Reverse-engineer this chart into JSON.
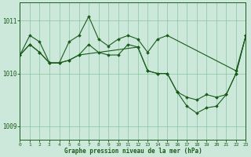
{
  "title": "Graphe pression niveau de la mer (hPa)",
  "bg": "#cce8da",
  "grid_color": "#88c4a0",
  "lc": "#1a5c1a",
  "xlim": [
    0,
    23
  ],
  "ylim": [
    1008.75,
    1011.35
  ],
  "yticks": [
    1009,
    1010,
    1011
  ],
  "xticks": [
    0,
    1,
    2,
    3,
    4,
    5,
    6,
    7,
    8,
    9,
    10,
    11,
    12,
    13,
    14,
    15,
    16,
    17,
    18,
    19,
    20,
    21,
    22,
    23
  ],
  "series1_x": [
    0,
    1,
    2,
    3,
    4,
    5,
    6,
    7,
    8,
    9,
    10,
    11,
    12,
    13,
    14,
    15,
    22,
    23
  ],
  "series1_y": [
    1010.35,
    1010.72,
    1010.6,
    1010.2,
    1010.2,
    1010.6,
    1010.72,
    1011.08,
    1010.65,
    1010.52,
    1010.65,
    1010.72,
    1010.65,
    1010.4,
    1010.65,
    1010.72,
    1010.05,
    1010.72
  ],
  "series2_x": [
    0,
    1,
    2,
    3,
    4,
    5,
    6,
    7,
    8,
    9,
    10,
    11,
    12,
    13,
    14,
    15,
    16,
    17,
    18,
    19,
    20,
    21,
    22,
    23
  ],
  "series2_y": [
    1010.35,
    1010.55,
    1010.4,
    1010.2,
    1010.2,
    1010.25,
    1010.35,
    1010.55,
    1010.4,
    1010.35,
    1010.35,
    1010.55,
    1010.5,
    1010.05,
    1010.0,
    1010.0,
    1009.65,
    1009.38,
    1009.25,
    1009.35,
    1009.38,
    1009.6,
    1010.0,
    1010.72
  ],
  "series3_x": [
    0,
    1,
    2,
    3,
    4,
    5,
    6,
    12,
    13,
    14,
    15,
    16,
    17,
    18,
    19,
    20,
    21,
    22,
    23
  ],
  "series3_y": [
    1010.35,
    1010.55,
    1010.4,
    1010.2,
    1010.2,
    1010.25,
    1010.35,
    1010.5,
    1010.05,
    1010.0,
    1010.0,
    1009.65,
    1009.55,
    1009.5,
    1009.6,
    1009.55,
    1009.6,
    1010.0,
    1010.72
  ]
}
